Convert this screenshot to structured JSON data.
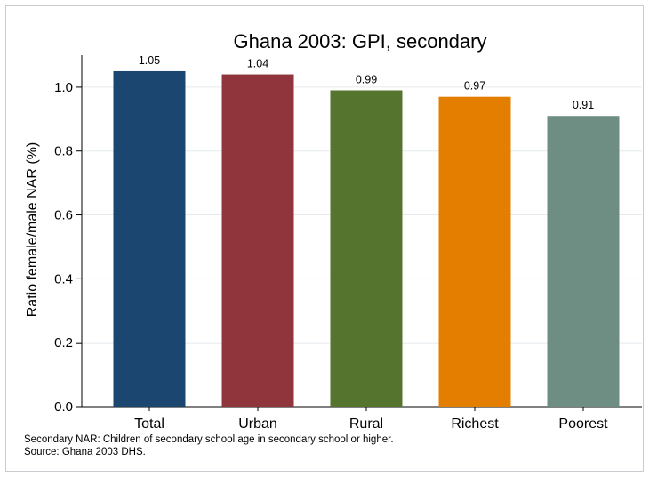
{
  "chart_data": {
    "type": "bar",
    "title": "Ghana 2003: GPI, secondary",
    "xlabel": "",
    "ylabel": "Ratio female/male NAR (%)",
    "categories": [
      "Total",
      "Urban",
      "Rural",
      "Richest",
      "Poorest"
    ],
    "values": [
      1.05,
      1.04,
      0.99,
      0.97,
      0.91
    ],
    "data_labels": [
      "1.05",
      "1.04",
      "0.99",
      "0.97",
      "0.91"
    ],
    "colors": [
      "#1b4670",
      "#90353b",
      "#55752f",
      "#e37e00",
      "#6e8e84"
    ],
    "ylim": [
      0,
      1.1
    ],
    "yticks": [
      0,
      0.2,
      0.4,
      0.6,
      0.8,
      1.0
    ],
    "ytick_labels": [
      "0.0",
      "0.2",
      "0.4",
      "0.6",
      "0.8",
      "1.0"
    ],
    "grid": true,
    "legend": "none"
  },
  "notes": {
    "line1": "Secondary NAR: Children of secondary school age in secondary school or higher.",
    "line2": "Source: Ghana 2003 DHS."
  }
}
